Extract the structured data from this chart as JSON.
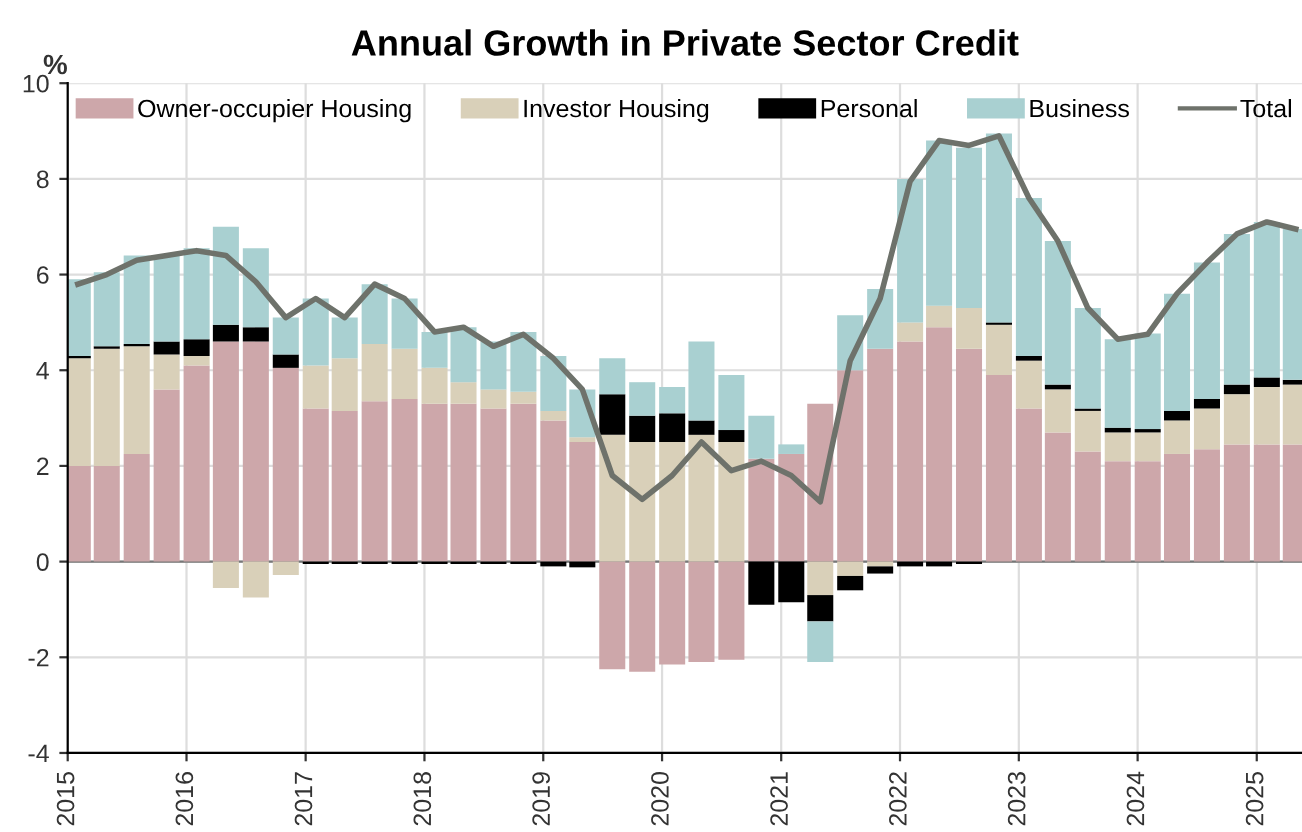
{
  "chart_data": {
    "type": "bar",
    "title": "Annual Growth in Private Sector Credit",
    "ylabel": "%",
    "stacked": true,
    "x": [
      "2015-02",
      "2015-05",
      "2015-08",
      "2015-11",
      "2016-02",
      "2016-05",
      "2016-08",
      "2016-11",
      "2017-02",
      "2017-05",
      "2017-08",
      "2017-11",
      "2018-02",
      "2018-05",
      "2018-08",
      "2018-11",
      "2019-02",
      "2019-05",
      "2019-08",
      "2019-11",
      "2020-02",
      "2020-05",
      "2020-08",
      "2020-11",
      "2021-02",
      "2021-05",
      "2021-08",
      "2021-11",
      "2022-02",
      "2022-05",
      "2022-08",
      "2022-11",
      "2023-02",
      "2023-05",
      "2023-08",
      "2023-11",
      "2024-02",
      "2024-05",
      "2024-08",
      "2024-11",
      "2025-02",
      "2025-05"
    ],
    "series": [
      {
        "name": "Owner-occupier Housing",
        "color": "#cda7aa",
        "values": [
          2.0,
          2.0,
          2.25,
          3.6,
          4.1,
          4.6,
          4.6,
          4.05,
          3.2,
          3.15,
          3.35,
          3.4,
          3.3,
          3.3,
          3.2,
          3.3,
          2.95,
          2.5,
          -2.25,
          -2.3,
          -2.15,
          -2.1,
          -2.05,
          2.15,
          2.25,
          3.3,
          4.0,
          4.45,
          4.6,
          4.9,
          4.45,
          3.9,
          3.2,
          2.7,
          2.3,
          2.1,
          2.1,
          2.25,
          2.35,
          2.45,
          2.45,
          2.45
        ]
      },
      {
        "name": "Investor Housing",
        "color": "#d9d0b9",
        "values": [
          2.25,
          2.45,
          2.25,
          0.73,
          0.2,
          -0.55,
          -0.75,
          -0.28,
          0.9,
          1.1,
          1.2,
          1.05,
          0.75,
          0.45,
          0.4,
          0.25,
          0.2,
          0.1,
          2.65,
          2.5,
          2.5,
          2.65,
          2.5,
          0,
          0,
          -0.7,
          -0.3,
          -0.1,
          0.4,
          0.45,
          0.85,
          1.05,
          1.0,
          0.9,
          0.85,
          0.6,
          0.6,
          0.7,
          0.85,
          1.05,
          1.2,
          1.25
        ]
      },
      {
        "name": "Personal",
        "color": "#000000",
        "values": [
          0.05,
          0.05,
          0.05,
          0.27,
          0.35,
          0.35,
          0.3,
          0.28,
          -0.05,
          -0.05,
          -0.05,
          -0.05,
          -0.05,
          -0.05,
          -0.05,
          -0.05,
          -0.1,
          -0.12,
          0.85,
          0.55,
          0.6,
          0.3,
          0.25,
          -0.9,
          -0.85,
          -0.55,
          -0.3,
          -0.15,
          -0.1,
          -0.1,
          -0.05,
          0.05,
          0.1,
          0.1,
          0.05,
          0.1,
          0.07,
          0.2,
          0.2,
          0.2,
          0.2,
          0.1
        ]
      },
      {
        "name": "Business",
        "color": "#a9d0d1",
        "values": [
          1.6,
          1.55,
          1.85,
          1.8,
          1.9,
          2.05,
          1.65,
          0.77,
          1.4,
          0.85,
          1.25,
          1.05,
          0.75,
          1.15,
          1.0,
          1.25,
          1.15,
          1.0,
          0.75,
          0.7,
          0.55,
          1.65,
          1.15,
          0.9,
          0.2,
          -0.85,
          1.15,
          1.25,
          3.0,
          3.45,
          3.35,
          3.95,
          3.3,
          3.0,
          2.1,
          1.85,
          2.0,
          2.45,
          2.85,
          3.15,
          3.25,
          3.15
        ]
      },
      {
        "name": "Total",
        "type": "line",
        "color": "#6e726b",
        "values": [
          5.8,
          6.0,
          6.3,
          6.4,
          6.5,
          6.4,
          5.85,
          5.1,
          5.5,
          5.1,
          5.8,
          5.5,
          4.8,
          4.9,
          4.5,
          4.75,
          4.25,
          3.6,
          1.8,
          1.3,
          1.8,
          2.5,
          1.9,
          2.1,
          1.8,
          1.25,
          4.2,
          5.5,
          7.95,
          8.8,
          8.7,
          8.9,
          7.6,
          6.7,
          5.3,
          4.65,
          4.75,
          5.6,
          6.25,
          6.85,
          7.1,
          6.95
        ]
      }
    ],
    "xlim": [
      "2015-01-01",
      "2025-05-20"
    ],
    "xticks": [
      "2015",
      "2016",
      "2017",
      "2018",
      "2019",
      "2020",
      "2021",
      "2022",
      "2023",
      "2024",
      "2025"
    ],
    "ylim": [
      -4,
      10
    ],
    "yticks": [
      -4,
      -2,
      0,
      2,
      4,
      6,
      8,
      10
    ],
    "grid": true,
    "legend": "top"
  }
}
